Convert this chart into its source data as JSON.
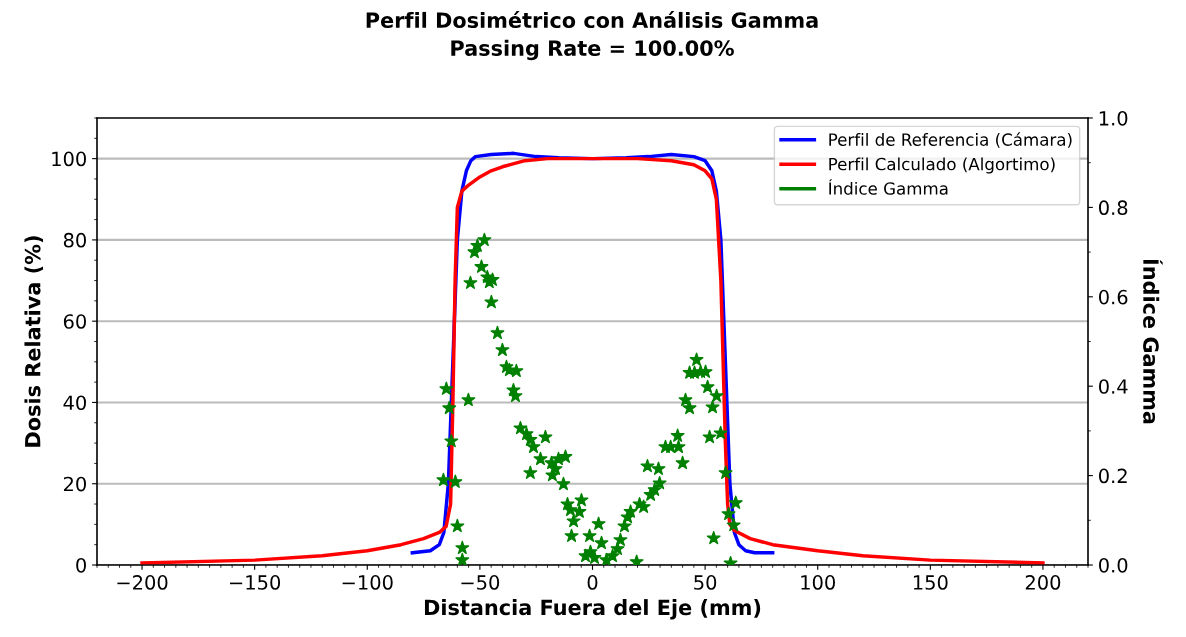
{
  "chart_data": {
    "type": "line",
    "title": "Perfil Dosimétrico con Análisis Gamma",
    "subtitle": "Passing Rate = 100.00%",
    "xlabel": "Distancia Fuera del Eje (mm)",
    "ylabel": "Dosis Relativa (%)",
    "y2label": "Índice Gamma",
    "xlim": [
      -220,
      220
    ],
    "xticks": [
      {
        "value": -200,
        "label": "−200"
      },
      {
        "value": -150,
        "label": "−150"
      },
      {
        "value": -100,
        "label": "−100"
      },
      {
        "value": -50,
        "label": "−50"
      },
      0,
      50,
      100,
      150,
      200
    ],
    "ylim": [
      0,
      110
    ],
    "yticks": [
      0,
      20,
      40,
      60,
      80,
      100
    ],
    "y2lim": [
      0,
      1.0
    ],
    "y2ticks": [
      {
        "value": 0,
        "label": "0.0"
      },
      0.2,
      0.4,
      0.6,
      0.8,
      {
        "value": 1.0,
        "label": "1.0"
      }
    ],
    "grid": "y",
    "legend": "top right",
    "line_style": "solid",
    "series": [
      {
        "name": "Perfil de Referencia (Cámara)",
        "color": "#0000ff",
        "marker": "none",
        "x": [
          -80,
          -72,
          -68,
          -66,
          -64,
          -62,
          -60,
          -58,
          -56,
          -54,
          -52,
          -45,
          -35,
          -25,
          -15,
          0,
          15,
          25,
          35,
          45,
          50,
          53,
          55,
          57,
          59,
          61,
          63,
          65,
          68,
          72,
          80
        ],
        "values": [
          3,
          3.5,
          5,
          8,
          20,
          50,
          80,
          92,
          97,
          99.5,
          100.5,
          101,
          101.3,
          100.5,
          100.2,
          100,
          100.2,
          100.5,
          101,
          100.5,
          99.5,
          97,
          92,
          80,
          50,
          20,
          8,
          5,
          3.5,
          3,
          3
        ]
      },
      {
        "name": "Perfil Calculado (Algortimo)",
        "color": "#ff0000",
        "marker": "none",
        "x": [
          -200,
          -150,
          -120,
          -100,
          -85,
          -75,
          -68,
          -65,
          -63,
          -62,
          -61,
          -60,
          -58,
          -55,
          -50,
          -45,
          -40,
          -30,
          -20,
          0,
          20,
          35,
          45,
          50,
          53,
          55,
          57,
          59,
          60,
          61,
          63,
          70,
          80,
          100,
          120,
          150,
          200
        ],
        "values": [
          0.5,
          1.2,
          2.3,
          3.5,
          5,
          6.5,
          8,
          9.5,
          15,
          40,
          70,
          88,
          92,
          93.5,
          95.5,
          97,
          98,
          99.5,
          100,
          100,
          100,
          99.5,
          98.5,
          97,
          95,
          90,
          70,
          30,
          15,
          10,
          8.5,
          6.5,
          5,
          3.5,
          2.3,
          1.2,
          0.5
        ]
      },
      {
        "name": "Índice Gamma",
        "color": "#008000",
        "type": "scatter",
        "marker": "star",
        "axis": "y2",
        "x": [
          -64.9,
          -63.6,
          -62.7,
          -66.2,
          -60.9,
          -60,
          -57.8,
          -57.8,
          -55.1,
          -54.2,
          -52.4,
          -51.1,
          -48,
          -49.3,
          -46.7,
          -45.8,
          -44.4,
          -44.9,
          -42.2,
          -40,
          -38.2,
          -36.9,
          -33.8,
          -35.1,
          -34.2,
          -32,
          -29.3,
          -27.6,
          -26.2,
          -20.9,
          -23.1,
          -27.6,
          -18.2,
          -16.4,
          -17.8,
          -15.1,
          -12,
          -12.9,
          -11.1,
          -9.8,
          -8.4,
          -9.3,
          -4.9,
          -5.8,
          -1.3,
          -3.1,
          -0.9,
          0.9,
          2.7,
          4,
          6.2,
          8.9,
          11.1,
          12.4,
          14.2,
          15.6,
          16.9,
          19.6,
          20.9,
          22.7,
          24.4,
          25.8,
          27.6,
          29.8,
          29.3,
          32.4,
          34.7,
          37.8,
          38.2,
          40,
          41.3,
          43.1,
          43.1,
          45.3,
          46.2,
          48,
          50.2,
          51.1,
          53.3,
          55.1,
          52,
          56.9,
          53.8,
          59.1,
          60.4,
          62.7,
          61.3,
          63.6
        ],
        "values": [
          0.394,
          0.351,
          0.277,
          0.19,
          0.186,
          0.087,
          0.038,
          0.011,
          0.369,
          0.631,
          0.7,
          0.714,
          0.727,
          0.667,
          0.644,
          0.633,
          0.638,
          0.588,
          0.519,
          0.481,
          0.443,
          0.436,
          0.434,
          0.391,
          0.378,
          0.306,
          0.293,
          0.28,
          0.264,
          0.286,
          0.237,
          0.206,
          0.228,
          0.215,
          0.201,
          0.237,
          0.242,
          0.181,
          0.136,
          0.123,
          0.098,
          0.065,
          0.145,
          0.119,
          0.065,
          0.02,
          0.029,
          0.016,
          0.092,
          0.049,
          0.011,
          0.02,
          0.036,
          0.056,
          0.087,
          0.107,
          0.119,
          0.007,
          0.136,
          0.13,
          0.221,
          0.157,
          0.168,
          0.183,
          0.215,
          0.264,
          0.264,
          0.289,
          0.264,
          0.228,
          0.369,
          0.351,
          0.43,
          0.43,
          0.459,
          0.432,
          0.432,
          0.398,
          0.353,
          0.378,
          0.286,
          0.295,
          0.06,
          0.206,
          0.114,
          0.089,
          0.004,
          0.139
        ]
      }
    ]
  }
}
